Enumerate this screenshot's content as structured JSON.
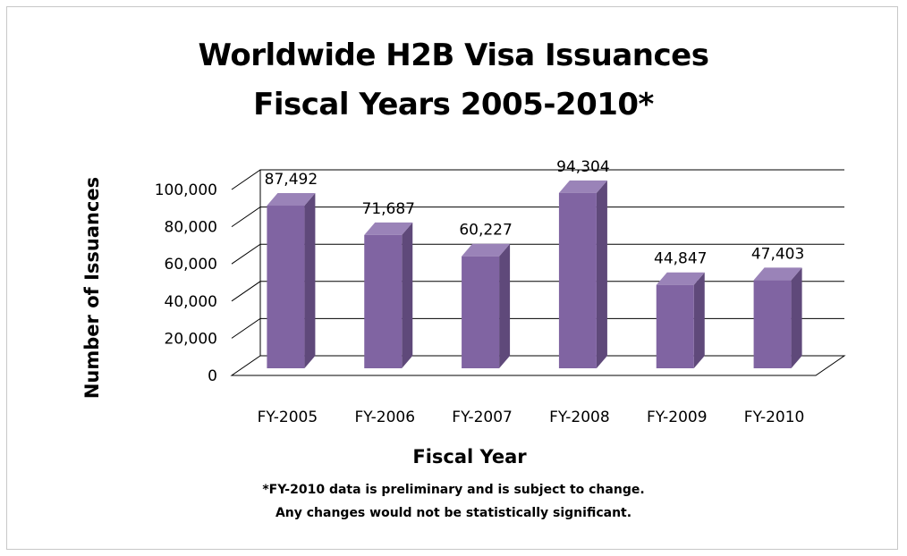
{
  "chart_data": {
    "type": "bar",
    "title": "Worldwide H2B Visa Issuances",
    "subtitle": "Fiscal Years 2005-2010*",
    "xlabel": "Fiscal Year",
    "ylabel": "Number of Issuances",
    "categories": [
      "FY-2005",
      "FY-2006",
      "FY-2007",
      "FY-2008",
      "FY-2009",
      "FY-2010"
    ],
    "values": [
      87492,
      71687,
      60227,
      94304,
      44847,
      47403
    ],
    "data_labels": [
      "87,492",
      "71,687",
      "60,227",
      "94,304",
      "44,847",
      "47,403"
    ],
    "ylim": [
      0,
      100000
    ],
    "yticks": [
      0,
      20000,
      40000,
      60000,
      80000,
      100000
    ],
    "ytick_labels": [
      "0",
      "20,000",
      "40,000",
      "60,000",
      "80,000",
      "100,000"
    ],
    "grid": true,
    "bar_style": "3d",
    "colors": {
      "bar_front": "#8064a2",
      "bar_side": "#5f497a",
      "bar_top": "#9a83b8",
      "gridline": "#000000"
    }
  },
  "footnotes": {
    "line1": "*FY-2010 data is preliminary and is subject to change.",
    "line2": "Any changes would not be statistically significant."
  }
}
